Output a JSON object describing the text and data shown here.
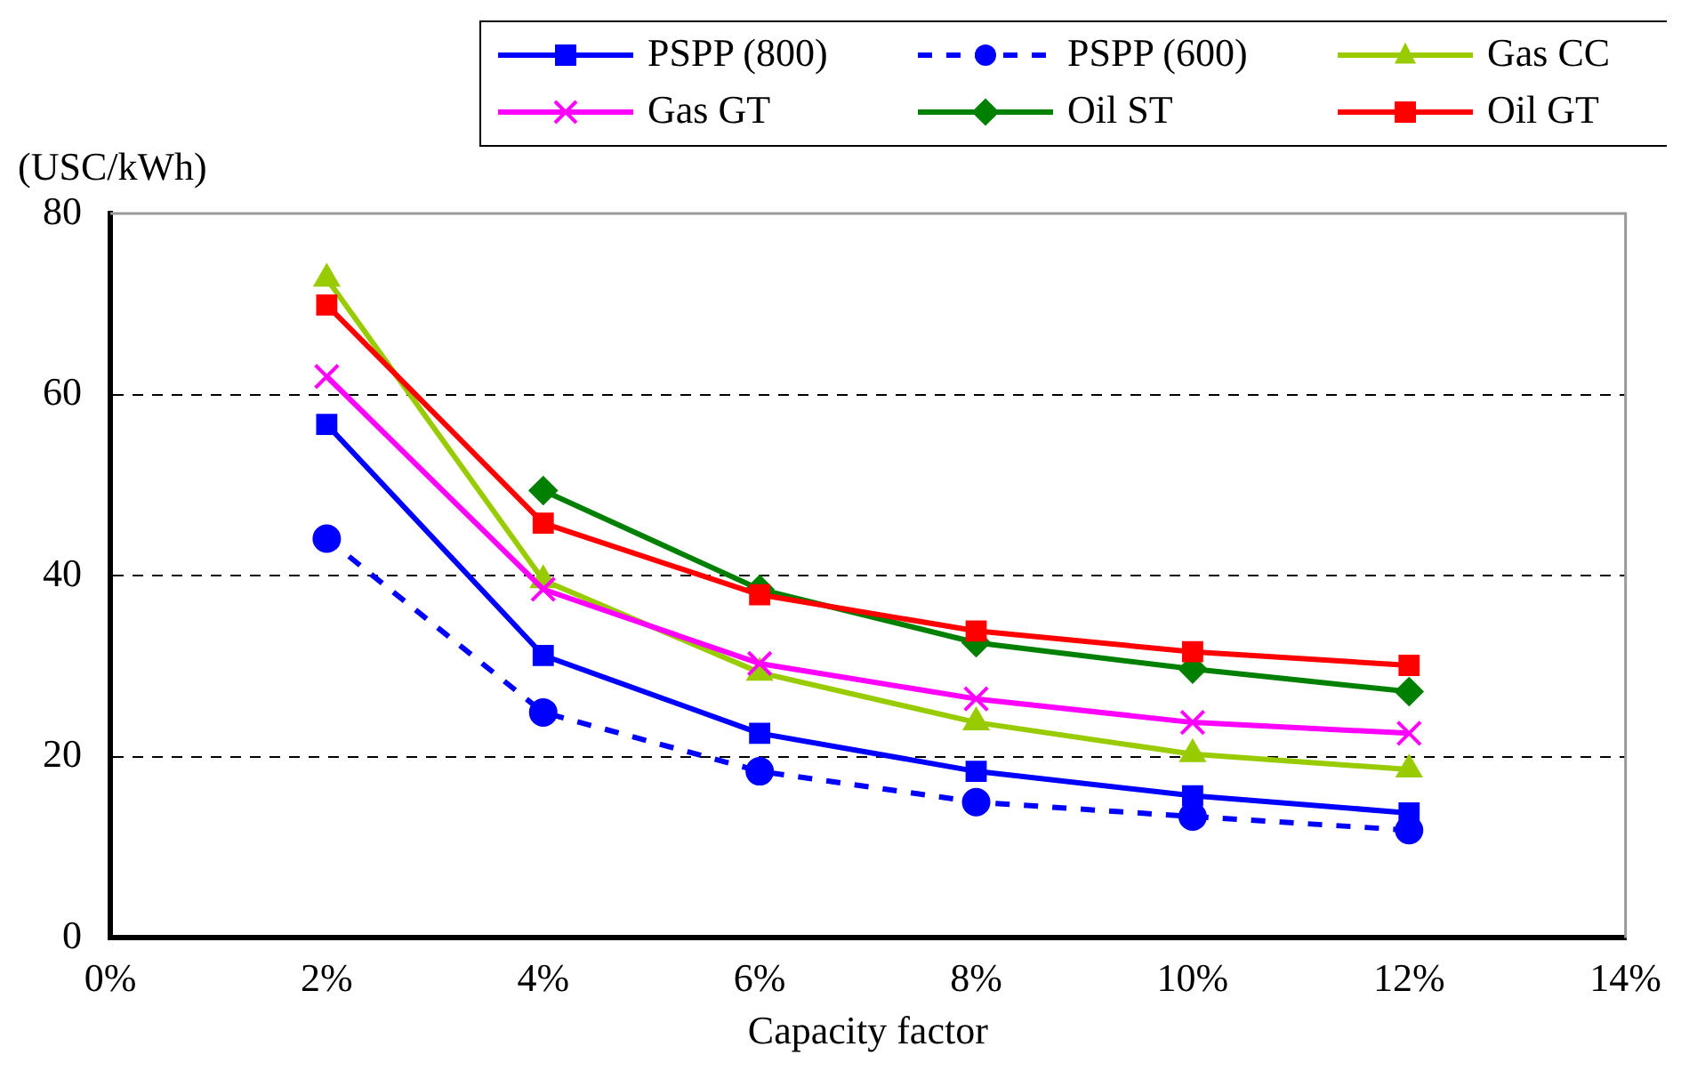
{
  "chart_data": {
    "type": "line",
    "xlabel": "Capacity factor",
    "ylabel": "(USC/kWh)",
    "x": [
      2,
      4,
      6,
      8,
      10,
      12
    ],
    "xlim": [
      0,
      14
    ],
    "xticks": [
      {
        "value": 0,
        "label": "0%"
      },
      {
        "value": 2,
        "label": "2%"
      },
      {
        "value": 4,
        "label": "4%"
      },
      {
        "value": 6,
        "label": "6%"
      },
      {
        "value": 8,
        "label": "8%"
      },
      {
        "value": 10,
        "label": "10%"
      },
      {
        "value": 12,
        "label": "12%"
      },
      {
        "value": 14,
        "label": "14%"
      }
    ],
    "ylim": [
      0,
      80
    ],
    "yticks": [
      0,
      20,
      40,
      60,
      80
    ],
    "grid": "y",
    "legend": "top",
    "series": [
      {
        "name": "PSPP (800)",
        "color": "#0000ff",
        "marker": "square",
        "line_style": "solid",
        "values": [
          56.7,
          31.2,
          22.6,
          18.4,
          15.7,
          13.8
        ]
      },
      {
        "name": "PSPP (600)",
        "color": "#0000ff",
        "marker": "circle",
        "line_style": "dashed",
        "values": [
          44.1,
          24.9,
          18.4,
          15,
          13.4,
          11.9
        ]
      },
      {
        "name": "Gas CC",
        "color": "#99cc00",
        "marker": "triangle",
        "line_style": "solid",
        "values": [
          72.8,
          39.5,
          29.3,
          23.8,
          20.3,
          18.6
        ]
      },
      {
        "name": "Gas GT",
        "color": "#ff00ff",
        "marker": "cross",
        "line_style": "solid",
        "values": [
          62,
          38.5,
          30.3,
          26.4,
          23.8,
          22.6
        ]
      },
      {
        "name": "Oil ST",
        "color": "#008000",
        "marker": "diamond",
        "line_style": "solid",
        "values": [
          null,
          49.4,
          38.5,
          32.6,
          29.7,
          27.2
        ]
      },
      {
        "name": "Oil GT",
        "color": "#ff0000",
        "marker": "square",
        "line_style": "solid",
        "values": [
          69.9,
          45.8,
          37.9,
          33.9,
          31.6,
          30.1
        ]
      }
    ]
  }
}
